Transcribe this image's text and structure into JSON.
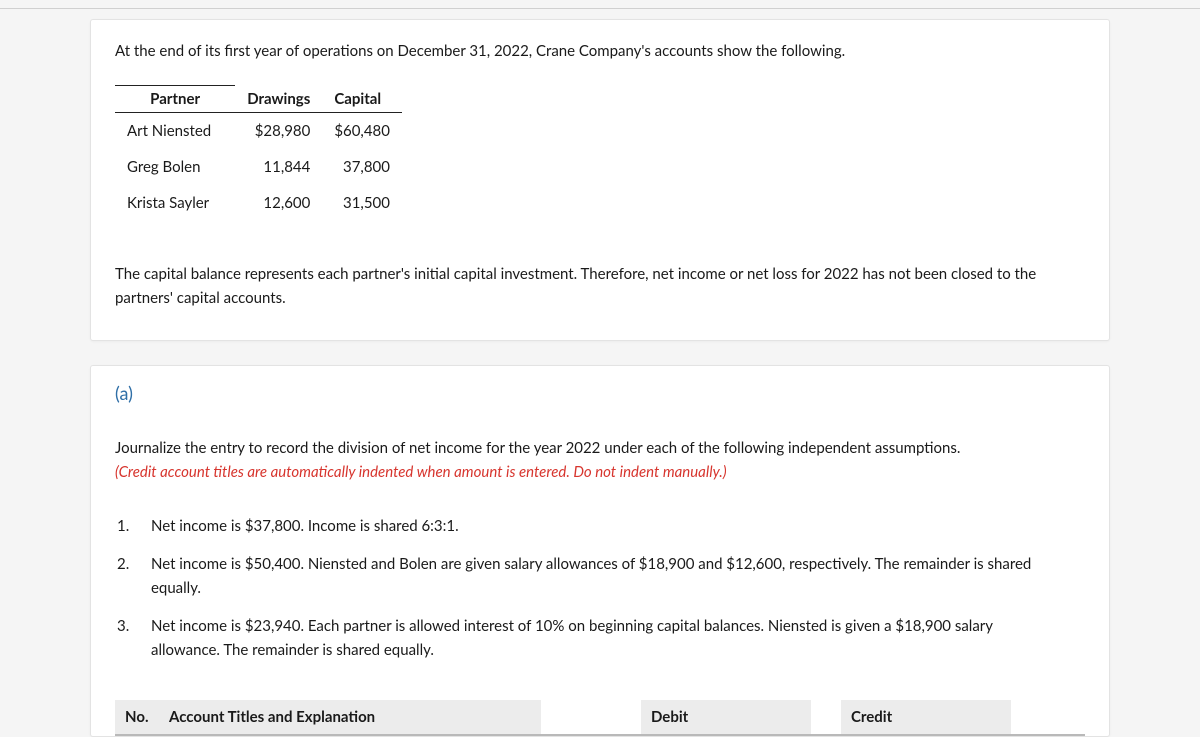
{
  "panel1": {
    "intro": "At the end of its first year of operations on December 31, 2022, Crane Company's accounts show the following.",
    "table": {
      "headers": {
        "partner": "Partner",
        "drawings": "Drawings",
        "capital": "Capital"
      },
      "rows": [
        {
          "name": "Art Niensted",
          "drawings": "$28,980",
          "capital": "$60,480"
        },
        {
          "name": "Greg Bolen",
          "drawings": "11,844",
          "capital": "37,800"
        },
        {
          "name": "Krista Sayler",
          "drawings": "12,600",
          "capital": "31,500"
        }
      ]
    },
    "note": "The capital balance represents each partner's initial capital investment. Therefore, net income or net loss for 2022 has not been closed to the partners' capital accounts."
  },
  "panel2": {
    "part_label": "(a)",
    "instruction_main": "Journalize the entry to record the division of net income for the year 2022 under each of the following independent assumptions.",
    "instruction_hint": "(Credit account titles are automatically indented when amount is entered. Do not indent manually.)",
    "items": [
      {
        "n": "1.",
        "t": "Net income is $37,800. Income is shared 6:3:1."
      },
      {
        "n": "2.",
        "t": "Net income is $50,400. Niensted and Bolen are given salary allowances of $18,900 and $12,600, respectively. The remainder is shared equally."
      },
      {
        "n": "3.",
        "t": "Net income is $23,940. Each partner is allowed interest of 10% on beginning capital balances. Niensted is given a $18,900 salary allowance. The remainder is shared equally."
      }
    ],
    "je_headers": {
      "no": "No.",
      "title": "Account Titles and Explanation",
      "debit": "Debit",
      "credit": "Credit"
    }
  }
}
